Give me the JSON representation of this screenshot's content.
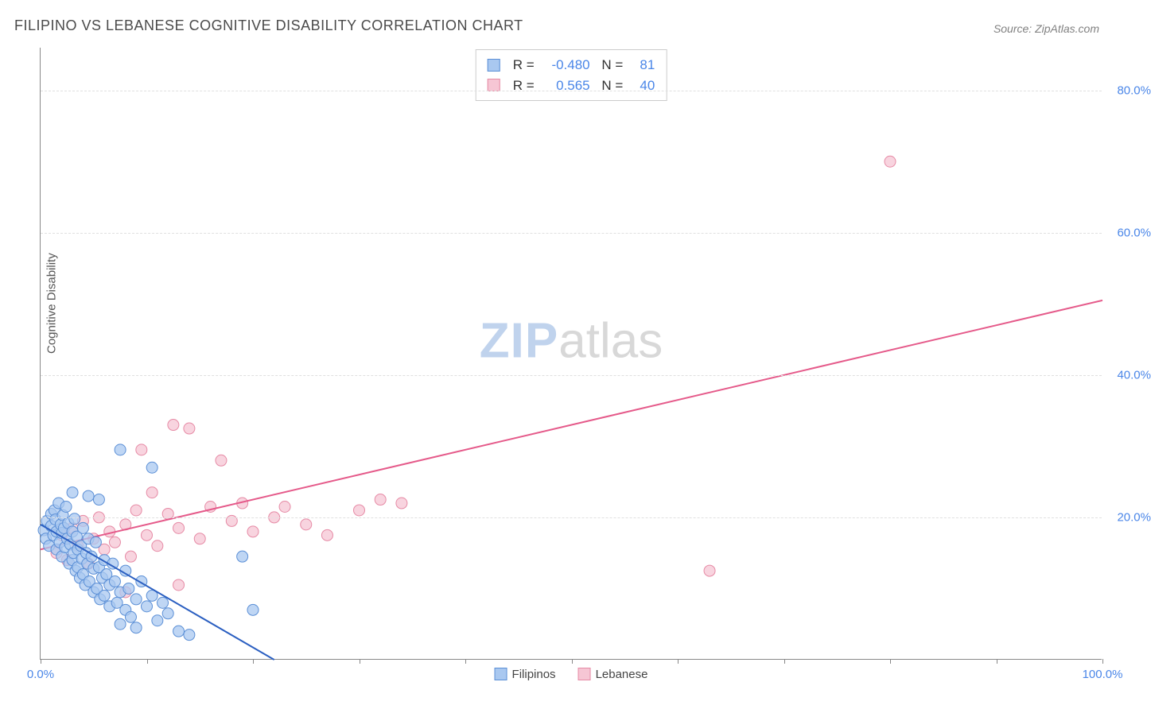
{
  "title": "FILIPINO VS LEBANESE COGNITIVE DISABILITY CORRELATION CHART",
  "source_label": "Source: ZipAtlas.com",
  "ylabel": "Cognitive Disability",
  "watermark": {
    "part1": "ZIP",
    "part2": "atlas"
  },
  "chart": {
    "type": "scatter",
    "background_color": "#ffffff",
    "grid_color": "#e0e0e0",
    "axis_color": "#888888",
    "tick_label_color": "#4a86e8",
    "xlim": [
      0,
      100
    ],
    "ylim": [
      0,
      86
    ],
    "xtick_positions": [
      0,
      10,
      20,
      30,
      40,
      50,
      60,
      70,
      80,
      90,
      100
    ],
    "xtick_labels": {
      "0": "0.0%",
      "100": "100.0%"
    },
    "ytick_positions": [
      20,
      40,
      60,
      80
    ],
    "ytick_labels": {
      "20": "20.0%",
      "40": "40.0%",
      "60": "60.0%",
      "80": "80.0%"
    },
    "marker_radius": 7,
    "trend_line_width": 2
  },
  "series": {
    "filipinos": {
      "label": "Filipinos",
      "fill_color": "#a9c8f0",
      "stroke_color": "#5b8fd6",
      "trend_color": "#2b5fc1",
      "R": "-0.480",
      "N": "81",
      "trend": {
        "x1": 0,
        "y1": 19.0,
        "x2": 22,
        "y2": 0
      },
      "points": [
        [
          0.3,
          18.2
        ],
        [
          0.5,
          17.0
        ],
        [
          0.6,
          19.5
        ],
        [
          0.8,
          16.0
        ],
        [
          1.0,
          20.5
        ],
        [
          1.0,
          18.8
        ],
        [
          1.2,
          17.5
        ],
        [
          1.3,
          21.0
        ],
        [
          1.4,
          19.7
        ],
        [
          1.5,
          15.5
        ],
        [
          1.5,
          18.0
        ],
        [
          1.7,
          22.0
        ],
        [
          1.8,
          16.5
        ],
        [
          1.9,
          19.0
        ],
        [
          2.0,
          17.8
        ],
        [
          2.0,
          14.5
        ],
        [
          2.1,
          20.3
        ],
        [
          2.2,
          18.5
        ],
        [
          2.3,
          15.8
        ],
        [
          2.4,
          21.5
        ],
        [
          2.5,
          17.0
        ],
        [
          2.6,
          19.2
        ],
        [
          2.7,
          13.5
        ],
        [
          2.8,
          16.2
        ],
        [
          3.0,
          18.0
        ],
        [
          3.0,
          14.0
        ],
        [
          3.1,
          15.0
        ],
        [
          3.2,
          19.8
        ],
        [
          3.3,
          12.5
        ],
        [
          3.4,
          17.3
        ],
        [
          3.5,
          13.0
        ],
        [
          3.5,
          15.5
        ],
        [
          3.7,
          11.5
        ],
        [
          3.8,
          16.0
        ],
        [
          3.9,
          14.2
        ],
        [
          4.0,
          18.5
        ],
        [
          4.0,
          12.0
        ],
        [
          4.2,
          10.5
        ],
        [
          4.3,
          15.0
        ],
        [
          4.4,
          13.5
        ],
        [
          4.5,
          17.0
        ],
        [
          4.6,
          11.0
        ],
        [
          4.8,
          14.5
        ],
        [
          5.0,
          12.8
        ],
        [
          5.0,
          9.5
        ],
        [
          5.2,
          16.5
        ],
        [
          5.3,
          10.0
        ],
        [
          5.5,
          13.0
        ],
        [
          5.6,
          8.5
        ],
        [
          5.8,
          11.5
        ],
        [
          6.0,
          14.0
        ],
        [
          6.0,
          9.0
        ],
        [
          6.2,
          12.0
        ],
        [
          6.5,
          10.5
        ],
        [
          6.5,
          7.5
        ],
        [
          6.8,
          13.5
        ],
        [
          7.0,
          11.0
        ],
        [
          7.2,
          8.0
        ],
        [
          7.5,
          9.5
        ],
        [
          7.5,
          5.0
        ],
        [
          8.0,
          12.5
        ],
        [
          8.0,
          7.0
        ],
        [
          8.3,
          10.0
        ],
        [
          8.5,
          6.0
        ],
        [
          9.0,
          8.5
        ],
        [
          9.0,
          4.5
        ],
        [
          9.5,
          11.0
        ],
        [
          10.0,
          7.5
        ],
        [
          10.5,
          27.0
        ],
        [
          10.5,
          9.0
        ],
        [
          11.0,
          5.5
        ],
        [
          11.5,
          8.0
        ],
        [
          12.0,
          6.5
        ],
        [
          13.0,
          4.0
        ],
        [
          14.0,
          3.5
        ],
        [
          7.5,
          29.5
        ],
        [
          4.5,
          23.0
        ],
        [
          5.5,
          22.5
        ],
        [
          3.0,
          23.5
        ],
        [
          19.0,
          14.5
        ],
        [
          20.0,
          7.0
        ]
      ]
    },
    "lebanese": {
      "label": "Lebanese",
      "fill_color": "#f6c6d4",
      "stroke_color": "#e68aa5",
      "trend_color": "#e55a8a",
      "R": "0.565",
      "N": "40",
      "trend": {
        "x1": 0,
        "y1": 15.5,
        "x2": 100,
        "y2": 50.5
      },
      "points": [
        [
          1.5,
          15.0
        ],
        [
          2.0,
          17.5
        ],
        [
          2.5,
          14.0
        ],
        [
          3.0,
          18.5
        ],
        [
          3.5,
          16.0
        ],
        [
          4.0,
          19.5
        ],
        [
          4.5,
          13.5
        ],
        [
          5.0,
          17.0
        ],
        [
          5.5,
          20.0
        ],
        [
          6.0,
          15.5
        ],
        [
          6.5,
          18.0
        ],
        [
          7.0,
          16.5
        ],
        [
          8.0,
          19.0
        ],
        [
          8.5,
          14.5
        ],
        [
          9.0,
          21.0
        ],
        [
          9.5,
          29.5
        ],
        [
          10.0,
          17.5
        ],
        [
          10.5,
          23.5
        ],
        [
          11.0,
          16.0
        ],
        [
          12.0,
          20.5
        ],
        [
          12.5,
          33.0
        ],
        [
          13.0,
          18.5
        ],
        [
          14.0,
          32.5
        ],
        [
          15.0,
          17.0
        ],
        [
          16.0,
          21.5
        ],
        [
          17.0,
          28.0
        ],
        [
          18.0,
          19.5
        ],
        [
          19.0,
          22.0
        ],
        [
          20.0,
          18.0
        ],
        [
          22.0,
          20.0
        ],
        [
          23.0,
          21.5
        ],
        [
          25.0,
          19.0
        ],
        [
          27.0,
          17.5
        ],
        [
          30.0,
          21.0
        ],
        [
          32.0,
          22.5
        ],
        [
          34.0,
          22.0
        ],
        [
          8.0,
          9.5
        ],
        [
          13.0,
          10.5
        ],
        [
          63.0,
          12.5
        ],
        [
          80.0,
          70.0
        ]
      ]
    }
  },
  "bottom_legend": {
    "items": [
      "filipinos",
      "lebanese"
    ]
  }
}
